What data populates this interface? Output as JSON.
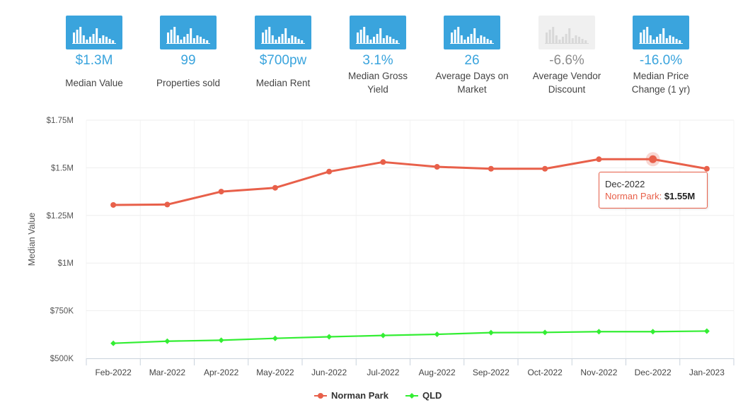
{
  "stats": [
    {
      "value": "$1.3M",
      "label_lines": [
        "Median Value"
      ],
      "active": true
    },
    {
      "value": "99",
      "label_lines": [
        "Properties sold"
      ],
      "active": true
    },
    {
      "value": "$700pw",
      "label_lines": [
        "Median Rent"
      ],
      "active": true
    },
    {
      "value": "3.1%",
      "label_lines": [
        "Median Gross",
        "Yield"
      ],
      "active": true
    },
    {
      "value": "26",
      "label_lines": [
        "Average Days on",
        "Market"
      ],
      "active": true
    },
    {
      "value": "-6.6%",
      "label_lines": [
        "Average Vendor",
        "Discount"
      ],
      "active": false
    },
    {
      "value": "-16.0%",
      "label_lines": [
        "Median Price",
        "Change (1 yr)"
      ],
      "active": true
    }
  ],
  "colors": {
    "accent": "#3aa4dd",
    "muted_icon": "#f0f0f0",
    "norman_park": "#e8604a",
    "qld": "#33ee33"
  },
  "chart_data": {
    "type": "line",
    "ylabel": "Median Value",
    "categories": [
      "Feb-2022",
      "Mar-2022",
      "Apr-2022",
      "May-2022",
      "Jun-2022",
      "Jul-2022",
      "Aug-2022",
      "Sep-2022",
      "Oct-2022",
      "Nov-2022",
      "Dec-2022",
      "Jan-2023"
    ],
    "ylim": [
      500000,
      1750000
    ],
    "yticks": [
      {
        "value": 500000,
        "label": "$500K"
      },
      {
        "value": 750000,
        "label": "$750K"
      },
      {
        "value": 1000000,
        "label": "$1M"
      },
      {
        "value": 1250000,
        "label": "$1.25M"
      },
      {
        "value": 1500000,
        "label": "$1.5M"
      },
      {
        "value": 1750000,
        "label": "$1.75M"
      }
    ],
    "series": [
      {
        "name": "Norman Park",
        "color": "#e8604a",
        "marker": "circle",
        "values": [
          1305000,
          1307000,
          1375000,
          1395000,
          1480000,
          1530000,
          1505000,
          1495000,
          1495000,
          1545000,
          1545000,
          1495000
        ]
      },
      {
        "name": "QLD",
        "color": "#33ee33",
        "marker": "diamond",
        "values": [
          579000,
          590000,
          595000,
          605000,
          613000,
          620000,
          626000,
          635000,
          636000,
          640000,
          640000,
          643000
        ]
      }
    ],
    "legend_position": "bottom-center",
    "tooltip": {
      "category": "Dec-2022",
      "series": "Norman Park",
      "value_label": "$1.55M",
      "separator": ":"
    }
  }
}
